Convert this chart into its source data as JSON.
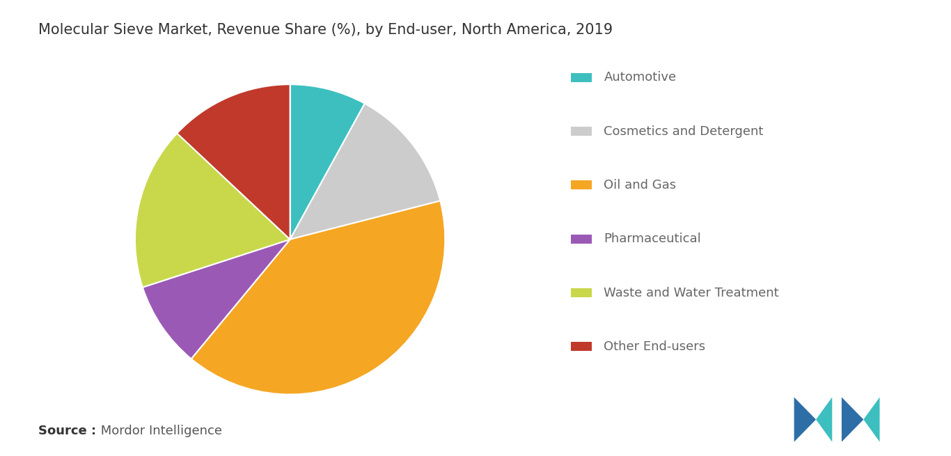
{
  "title": "Molecular Sieve Market, Revenue Share (%), by End-user, North America, 2019",
  "labels": [
    "Automotive",
    "Cosmetics and Detergent",
    "Oil and Gas",
    "Pharmaceutical",
    "Waste and Water Treatment",
    "Other End-users"
  ],
  "values": [
    8.0,
    13.0,
    40.0,
    9.0,
    17.0,
    13.0
  ],
  "colors": [
    "#3DBFBF",
    "#CCCCCC",
    "#F5A623",
    "#9B59B6",
    "#C8D84A",
    "#C0392B"
  ],
  "legend_colors": [
    "#3DBFBF",
    "#CCCCCC",
    "#F5A623",
    "#9B59B6",
    "#C8D84A",
    "#C0392B"
  ],
  "source_bold": "Source :",
  "source_text": " Mordor Intelligence",
  "background_color": "#FFFFFF",
  "title_fontsize": 15,
  "legend_fontsize": 13,
  "source_fontsize": 13,
  "startangle": 90,
  "logo_color_dark": "#2E6EA6",
  "logo_color_light": "#3DBFBF"
}
